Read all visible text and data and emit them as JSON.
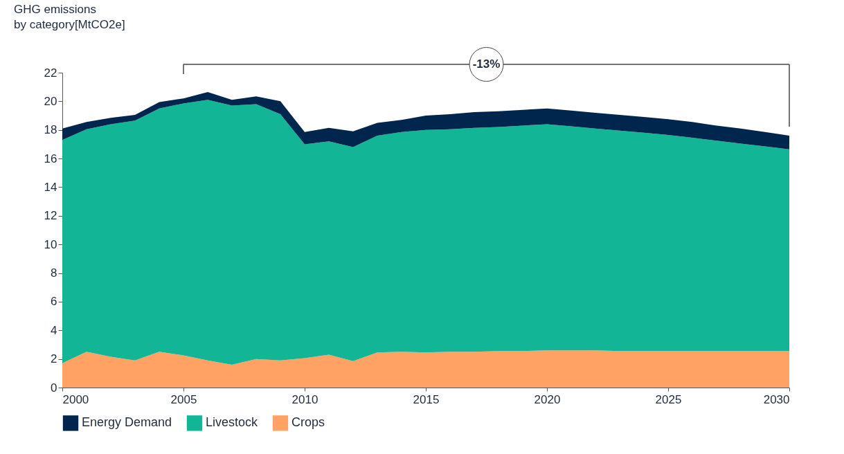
{
  "chart_data": {
    "type": "area",
    "title": "GHG emissions\nby category[MtCO2e]",
    "stacked": true,
    "x": [
      2000,
      2001,
      2002,
      2003,
      2004,
      2005,
      2006,
      2007,
      2008,
      2009,
      2010,
      2011,
      2012,
      2013,
      2014,
      2015,
      2016,
      2017,
      2018,
      2019,
      2020,
      2021,
      2022,
      2023,
      2024,
      2025,
      2026,
      2027,
      2028,
      2029,
      2030
    ],
    "series": [
      {
        "name": "Crops",
        "color": "#ffa263",
        "values": [
          1.7,
          2.5,
          2.15,
          1.9,
          2.5,
          2.25,
          1.9,
          1.6,
          2.0,
          1.9,
          2.05,
          2.3,
          1.85,
          2.45,
          2.5,
          2.45,
          2.5,
          2.5,
          2.55,
          2.55,
          2.6,
          2.6,
          2.6,
          2.55,
          2.55,
          2.55,
          2.55,
          2.55,
          2.55,
          2.55,
          2.55
        ]
      },
      {
        "name": "Livestock",
        "color": "#12b595",
        "values": [
          15.6,
          15.55,
          16.25,
          16.75,
          17.0,
          17.6,
          18.2,
          18.1,
          17.8,
          17.2,
          14.95,
          14.9,
          14.95,
          15.15,
          15.35,
          15.55,
          15.55,
          15.65,
          15.65,
          15.75,
          15.8,
          15.65,
          15.5,
          15.4,
          15.25,
          15.1,
          14.9,
          14.7,
          14.5,
          14.3,
          14.1
        ]
      },
      {
        "name": "Energy Demand",
        "color": "#00264d",
        "values": [
          0.8,
          0.5,
          0.45,
          0.4,
          0.45,
          0.35,
          0.55,
          0.4,
          0.55,
          0.9,
          0.85,
          0.95,
          1.1,
          0.9,
          0.85,
          1.0,
          1.05,
          1.1,
          1.1,
          1.1,
          1.1,
          1.1,
          1.1,
          1.1,
          1.1,
          1.1,
          1.1,
          1.05,
          1.05,
          1.0,
          0.95
        ]
      }
    ],
    "xlim": [
      2000,
      2030
    ],
    "xticks": [
      2000,
      2005,
      2010,
      2015,
      2020,
      2025,
      2030
    ],
    "ylim": [
      0,
      22
    ],
    "yticks": [
      0,
      2,
      4,
      6,
      8,
      10,
      12,
      14,
      16,
      18,
      20,
      22
    ],
    "grid": false,
    "legend": "bottom",
    "annotations": [
      "-13%"
    ]
  }
}
